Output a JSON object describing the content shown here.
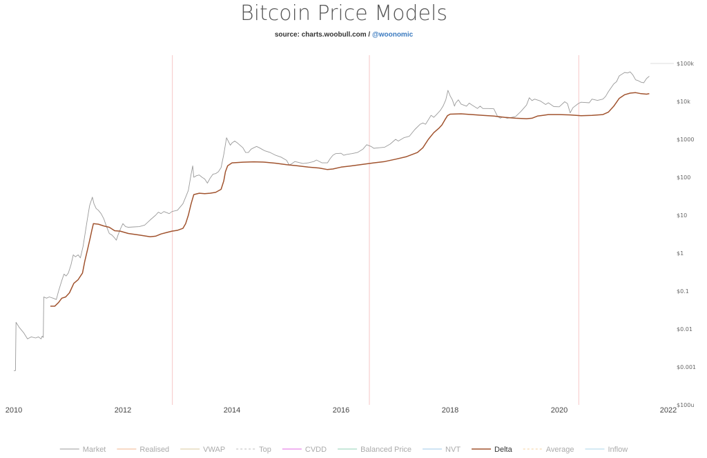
{
  "title": "Bitcoin Price Models",
  "source": {
    "prefix": "source: charts.woobull.com / ",
    "handle": "@woonomic"
  },
  "chart_data": {
    "type": "line",
    "title": "Bitcoin Price Models",
    "y_scale": "log",
    "ylim": [
      0.0001,
      100000
    ],
    "xlim": [
      "2010-01-01",
      "2022-01-01"
    ],
    "x_ticks": [
      "2010",
      "2012",
      "2014",
      "2016",
      "2018",
      "2020",
      "2022"
    ],
    "y_ticks": [
      {
        "value": 100000,
        "label": "$100k"
      },
      {
        "value": 10000,
        "label": "$10k"
      },
      {
        "value": 1000,
        "label": "$1000"
      },
      {
        "value": 100,
        "label": "$100"
      },
      {
        "value": 10,
        "label": "$10"
      },
      {
        "value": 1,
        "label": "$1"
      },
      {
        "value": 0.1,
        "label": "$0.1"
      },
      {
        "value": 0.01,
        "label": "$0.01"
      },
      {
        "value": 0.001,
        "label": "$0.001"
      },
      {
        "value": 0.0001,
        "label": "$100u"
      }
    ],
    "halving_lines": [
      "2012-11-28",
      "2016-07-09",
      "2020-05-11"
    ],
    "legend_position": "bottom",
    "legend": [
      {
        "label": "Market",
        "color": "#999999",
        "style": "solid"
      },
      {
        "label": "Realised",
        "color": "#f0b48c",
        "style": "solid"
      },
      {
        "label": "VWAP",
        "color": "#d8c89c",
        "style": "solid"
      },
      {
        "label": "Top",
        "color": "#bbbbbb",
        "style": "dashed"
      },
      {
        "label": "CVDD",
        "color": "#e066e0",
        "style": "solid"
      },
      {
        "label": "Balanced Price",
        "color": "#8fd0b4",
        "style": "solid"
      },
      {
        "label": "NVT",
        "color": "#9cc8e8",
        "style": "solid"
      },
      {
        "label": "Delta",
        "color": "#a0522d",
        "style": "solid"
      },
      {
        "label": "Average",
        "color": "#f4d09c",
        "style": "dashed"
      },
      {
        "label": "Inflow",
        "color": "#aad4e8",
        "style": "solid"
      }
    ],
    "series": [
      {
        "name": "Market",
        "color": "#999999",
        "points": [
          [
            2010.0,
            0.0008
          ],
          [
            2010.03,
            0.0008
          ],
          [
            2010.04,
            0.015
          ],
          [
            2010.1,
            0.011
          ],
          [
            2010.18,
            0.008
          ],
          [
            2010.25,
            0.0055
          ],
          [
            2010.32,
            0.0062
          ],
          [
            2010.4,
            0.0058
          ],
          [
            2010.45,
            0.0062
          ],
          [
            2010.5,
            0.0055
          ],
          [
            2010.52,
            0.0065
          ],
          [
            2010.54,
            0.006
          ],
          [
            2010.55,
            0.07
          ],
          [
            2010.6,
            0.065
          ],
          [
            2010.65,
            0.07
          ],
          [
            2010.72,
            0.065
          ],
          [
            2010.78,
            0.06
          ],
          [
            2010.82,
            0.1
          ],
          [
            2010.88,
            0.19
          ],
          [
            2010.92,
            0.28
          ],
          [
            2010.96,
            0.25
          ],
          [
            2011.0,
            0.3
          ],
          [
            2011.05,
            0.5
          ],
          [
            2011.09,
            0.9
          ],
          [
            2011.13,
            0.8
          ],
          [
            2011.18,
            0.9
          ],
          [
            2011.22,
            0.75
          ],
          [
            2011.27,
            1.5
          ],
          [
            2011.31,
            3.5
          ],
          [
            2011.35,
            8
          ],
          [
            2011.39,
            18
          ],
          [
            2011.44,
            30
          ],
          [
            2011.47,
            20
          ],
          [
            2011.51,
            15
          ],
          [
            2011.55,
            13.5
          ],
          [
            2011.6,
            11
          ],
          [
            2011.65,
            8
          ],
          [
            2011.7,
            5
          ],
          [
            2011.75,
            3.3
          ],
          [
            2011.8,
            3
          ],
          [
            2011.85,
            2.5
          ],
          [
            2011.88,
            2.2
          ],
          [
            2011.91,
            3
          ],
          [
            2011.96,
            4.5
          ],
          [
            2012.0,
            6
          ],
          [
            2012.05,
            5
          ],
          [
            2012.1,
            4.8
          ],
          [
            2012.2,
            4.9
          ],
          [
            2012.3,
            5
          ],
          [
            2012.4,
            5.5
          ],
          [
            2012.5,
            7.5
          ],
          [
            2012.6,
            10
          ],
          [
            2012.65,
            12
          ],
          [
            2012.7,
            11
          ],
          [
            2012.75,
            12.5
          ],
          [
            2012.85,
            11
          ],
          [
            2012.9,
            12.5
          ],
          [
            2013.0,
            13.5
          ],
          [
            2013.1,
            20
          ],
          [
            2013.15,
            30
          ],
          [
            2013.2,
            45
          ],
          [
            2013.25,
            120
          ],
          [
            2013.28,
            200
          ],
          [
            2013.3,
            100
          ],
          [
            2013.35,
            110
          ],
          [
            2013.4,
            115
          ],
          [
            2013.45,
            100
          ],
          [
            2013.5,
            90
          ],
          [
            2013.55,
            70
          ],
          [
            2013.6,
            95
          ],
          [
            2013.65,
            120
          ],
          [
            2013.7,
            125
          ],
          [
            2013.75,
            140
          ],
          [
            2013.8,
            180
          ],
          [
            2013.85,
            400
          ],
          [
            2013.9,
            1100
          ],
          [
            2013.93,
            900
          ],
          [
            2013.97,
            700
          ],
          [
            2014.0,
            800
          ],
          [
            2014.05,
            900
          ],
          [
            2014.1,
            800
          ],
          [
            2014.2,
            600
          ],
          [
            2014.25,
            450
          ],
          [
            2014.3,
            450
          ],
          [
            2014.35,
            550
          ],
          [
            2014.4,
            600
          ],
          [
            2014.45,
            650
          ],
          [
            2014.5,
            600
          ],
          [
            2014.6,
            500
          ],
          [
            2014.7,
            450
          ],
          [
            2014.8,
            380
          ],
          [
            2014.9,
            340
          ],
          [
            2015.0,
            280
          ],
          [
            2015.05,
            210
          ],
          [
            2015.1,
            230
          ],
          [
            2015.15,
            260
          ],
          [
            2015.2,
            250
          ],
          [
            2015.3,
            230
          ],
          [
            2015.4,
            240
          ],
          [
            2015.5,
            260
          ],
          [
            2015.55,
            285
          ],
          [
            2015.65,
            240
          ],
          [
            2015.75,
            240
          ],
          [
            2015.8,
            310
          ],
          [
            2015.85,
            380
          ],
          [
            2015.9,
            420
          ],
          [
            2016.0,
            430
          ],
          [
            2016.05,
            380
          ],
          [
            2016.1,
            400
          ],
          [
            2016.2,
            420
          ],
          [
            2016.3,
            450
          ],
          [
            2016.4,
            550
          ],
          [
            2016.47,
            720
          ],
          [
            2016.55,
            650
          ],
          [
            2016.6,
            580
          ],
          [
            2016.7,
            600
          ],
          [
            2016.8,
            620
          ],
          [
            2016.9,
            750
          ],
          [
            2017.0,
            1000
          ],
          [
            2017.05,
            900
          ],
          [
            2017.15,
            1100
          ],
          [
            2017.25,
            1200
          ],
          [
            2017.35,
            1800
          ],
          [
            2017.45,
            2500
          ],
          [
            2017.5,
            2700
          ],
          [
            2017.55,
            2500
          ],
          [
            2017.65,
            4300
          ],
          [
            2017.7,
            3800
          ],
          [
            2017.75,
            4500
          ],
          [
            2017.82,
            5800
          ],
          [
            2017.87,
            7500
          ],
          [
            2017.92,
            11000
          ],
          [
            2017.96,
            19500
          ],
          [
            2018.0,
            14000
          ],
          [
            2018.04,
            11000
          ],
          [
            2018.08,
            7500
          ],
          [
            2018.1,
            9000
          ],
          [
            2018.15,
            11000
          ],
          [
            2018.2,
            8500
          ],
          [
            2018.3,
            7500
          ],
          [
            2018.35,
            9000
          ],
          [
            2018.4,
            8000
          ],
          [
            2018.5,
            6500
          ],
          [
            2018.55,
            7500
          ],
          [
            2018.6,
            6500
          ],
          [
            2018.7,
            6500
          ],
          [
            2018.8,
            6400
          ],
          [
            2018.87,
            4000
          ],
          [
            2018.92,
            3600
          ],
          [
            2018.96,
            3900
          ],
          [
            2019.05,
            3600
          ],
          [
            2019.2,
            4000
          ],
          [
            2019.3,
            5500
          ],
          [
            2019.4,
            8000
          ],
          [
            2019.45,
            12500
          ],
          [
            2019.5,
            10500
          ],
          [
            2019.55,
            11500
          ],
          [
            2019.65,
            10300
          ],
          [
            2019.75,
            8300
          ],
          [
            2019.8,
            9200
          ],
          [
            2019.9,
            7300
          ],
          [
            2020.0,
            7200
          ],
          [
            2020.1,
            9800
          ],
          [
            2020.15,
            8800
          ],
          [
            2020.2,
            5000
          ],
          [
            2020.25,
            6800
          ],
          [
            2020.35,
            8800
          ],
          [
            2020.4,
            9500
          ],
          [
            2020.55,
            9200
          ],
          [
            2020.6,
            11500
          ],
          [
            2020.7,
            10600
          ],
          [
            2020.8,
            11500
          ],
          [
            2020.85,
            13500
          ],
          [
            2020.9,
            18000
          ],
          [
            2021.0,
            29000
          ],
          [
            2021.05,
            33000
          ],
          [
            2021.1,
            47000
          ],
          [
            2021.2,
            58000
          ],
          [
            2021.25,
            56000
          ],
          [
            2021.3,
            60000
          ],
          [
            2021.35,
            50000
          ],
          [
            2021.4,
            37000
          ],
          [
            2021.45,
            35000
          ],
          [
            2021.5,
            32000
          ],
          [
            2021.55,
            31000
          ],
          [
            2021.6,
            40000
          ],
          [
            2021.65,
            46000
          ]
        ]
      },
      {
        "name": "Delta",
        "color": "#a0522d",
        "points": [
          [
            2010.67,
            0.04
          ],
          [
            2010.75,
            0.04
          ],
          [
            2010.82,
            0.05
          ],
          [
            2010.88,
            0.065
          ],
          [
            2010.95,
            0.07
          ],
          [
            2011.02,
            0.09
          ],
          [
            2011.1,
            0.16
          ],
          [
            2011.18,
            0.2
          ],
          [
            2011.26,
            0.3
          ],
          [
            2011.3,
            0.6
          ],
          [
            2011.35,
            1.2
          ],
          [
            2011.4,
            2.5
          ],
          [
            2011.43,
            4
          ],
          [
            2011.46,
            6
          ],
          [
            2011.55,
            5.8
          ],
          [
            2011.65,
            5.2
          ],
          [
            2011.75,
            4.8
          ],
          [
            2011.85,
            3.9
          ],
          [
            2011.95,
            3.8
          ],
          [
            2012.1,
            3.3
          ],
          [
            2012.3,
            3
          ],
          [
            2012.5,
            2.7
          ],
          [
            2012.6,
            2.8
          ],
          [
            2012.7,
            3.2
          ],
          [
            2012.8,
            3.5
          ],
          [
            2012.9,
            3.8
          ],
          [
            2013.0,
            4
          ],
          [
            2013.1,
            4.5
          ],
          [
            2013.15,
            6
          ],
          [
            2013.2,
            10
          ],
          [
            2013.25,
            20
          ],
          [
            2013.3,
            35
          ],
          [
            2013.4,
            38
          ],
          [
            2013.5,
            37
          ],
          [
            2013.6,
            38
          ],
          [
            2013.7,
            40
          ],
          [
            2013.8,
            48
          ],
          [
            2013.85,
            80
          ],
          [
            2013.88,
            140
          ],
          [
            2013.92,
            200
          ],
          [
            2014.0,
            240
          ],
          [
            2014.2,
            250
          ],
          [
            2014.4,
            255
          ],
          [
            2014.6,
            250
          ],
          [
            2014.8,
            235
          ],
          [
            2015.0,
            215
          ],
          [
            2015.2,
            200
          ],
          [
            2015.4,
            185
          ],
          [
            2015.6,
            175
          ],
          [
            2015.75,
            160
          ],
          [
            2015.85,
            165
          ],
          [
            2016.0,
            185
          ],
          [
            2016.2,
            200
          ],
          [
            2016.4,
            220
          ],
          [
            2016.6,
            240
          ],
          [
            2016.8,
            260
          ],
          [
            2017.0,
            300
          ],
          [
            2017.2,
            350
          ],
          [
            2017.4,
            450
          ],
          [
            2017.5,
            600
          ],
          [
            2017.6,
            1000
          ],
          [
            2017.7,
            1500
          ],
          [
            2017.8,
            2000
          ],
          [
            2017.85,
            2400
          ],
          [
            2017.9,
            3200
          ],
          [
            2017.95,
            4200
          ],
          [
            2018.0,
            4600
          ],
          [
            2018.2,
            4700
          ],
          [
            2018.4,
            4500
          ],
          [
            2018.6,
            4300
          ],
          [
            2018.8,
            4100
          ],
          [
            2019.0,
            3800
          ],
          [
            2019.2,
            3600
          ],
          [
            2019.4,
            3500
          ],
          [
            2019.5,
            3600
          ],
          [
            2019.6,
            4100
          ],
          [
            2019.7,
            4300
          ],
          [
            2019.8,
            4500
          ],
          [
            2020.0,
            4500
          ],
          [
            2020.2,
            4400
          ],
          [
            2020.4,
            4200
          ],
          [
            2020.6,
            4300
          ],
          [
            2020.8,
            4500
          ],
          [
            2020.9,
            5200
          ],
          [
            2021.0,
            7500
          ],
          [
            2021.1,
            12000
          ],
          [
            2021.2,
            15000
          ],
          [
            2021.3,
            16500
          ],
          [
            2021.4,
            17000
          ],
          [
            2021.5,
            16000
          ],
          [
            2021.6,
            15500
          ],
          [
            2021.65,
            16000
          ]
        ]
      }
    ]
  }
}
